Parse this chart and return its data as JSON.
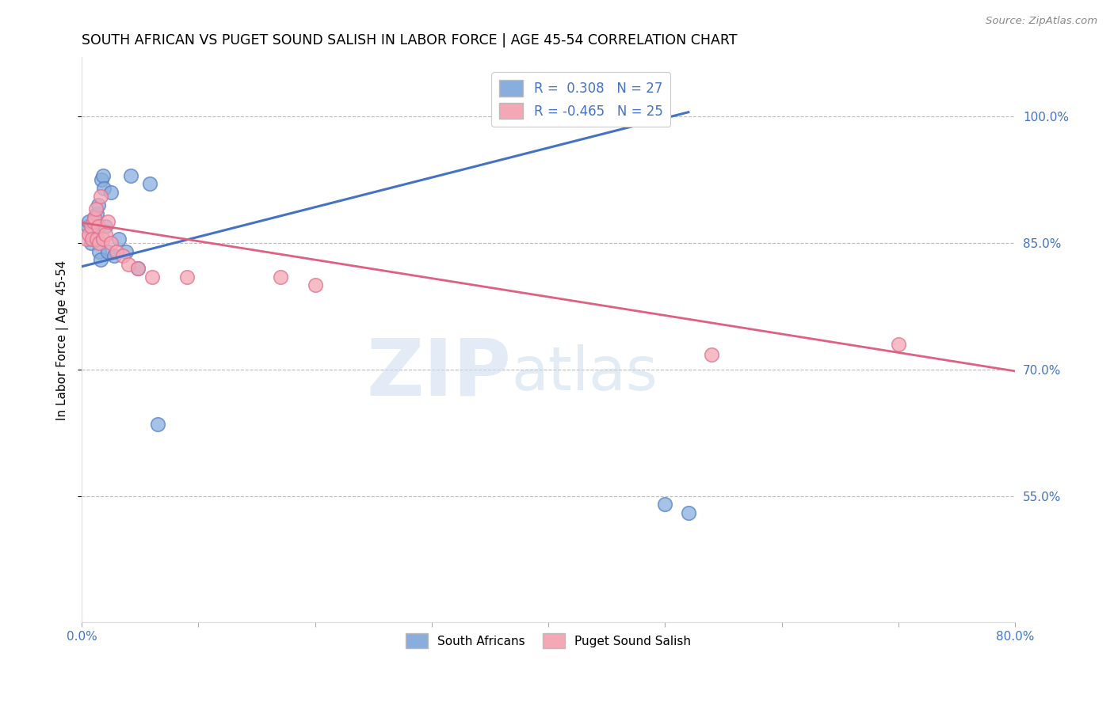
{
  "title": "SOUTH AFRICAN VS PUGET SOUND SALISH IN LABOR FORCE | AGE 45-54 CORRELATION CHART",
  "source": "Source: ZipAtlas.com",
  "ylabel": "In Labor Force | Age 45-54",
  "xlim": [
    0.0,
    0.8
  ],
  "ylim": [
    0.4,
    1.07
  ],
  "x_ticks": [
    0.0,
    0.1,
    0.2,
    0.3,
    0.4,
    0.5,
    0.6,
    0.7,
    0.8
  ],
  "x_tick_labels": [
    "0.0%",
    "",
    "",
    "",
    "",
    "",
    "",
    "",
    "80.0%"
  ],
  "y_ticks": [
    0.55,
    0.7,
    0.85,
    1.0
  ],
  "y_tick_labels_right": [
    "55.0%",
    "70.0%",
    "85.0%",
    "100.0%"
  ],
  "blue_R": "0.308",
  "blue_N": "27",
  "pink_R": "-0.465",
  "pink_N": "25",
  "blue_color": "#89AEDE",
  "pink_color": "#F4A7B5",
  "blue_edge_color": "#5580C0",
  "pink_edge_color": "#E07090",
  "blue_line_color": "#4472C4",
  "pink_line_color": "#E06080",
  "watermark_zip": "ZIP",
  "watermark_atlas": "atlas",
  "legend_blue_label": "South Africans",
  "legend_pink_label": "Puget Sound Salish",
  "blue_scatter_x": [
    0.005,
    0.006,
    0.008,
    0.009,
    0.01,
    0.01,
    0.011,
    0.012,
    0.013,
    0.014,
    0.015,
    0.016,
    0.017,
    0.018,
    0.019,
    0.02,
    0.022,
    0.025,
    0.028,
    0.032,
    0.038,
    0.042,
    0.048,
    0.058,
    0.065,
    0.5,
    0.52
  ],
  "blue_scatter_y": [
    0.87,
    0.875,
    0.85,
    0.865,
    0.86,
    0.855,
    0.88,
    0.875,
    0.885,
    0.895,
    0.84,
    0.83,
    0.925,
    0.93,
    0.915,
    0.87,
    0.84,
    0.91,
    0.835,
    0.855,
    0.84,
    0.93,
    0.82,
    0.92,
    0.635,
    0.54,
    0.53
  ],
  "pink_scatter_x": [
    0.004,
    0.006,
    0.008,
    0.009,
    0.01,
    0.011,
    0.012,
    0.013,
    0.014,
    0.015,
    0.016,
    0.018,
    0.02,
    0.022,
    0.025,
    0.03,
    0.035,
    0.04,
    0.048,
    0.06,
    0.09,
    0.17,
    0.2,
    0.54,
    0.7
  ],
  "pink_scatter_y": [
    0.855,
    0.86,
    0.87,
    0.855,
    0.875,
    0.88,
    0.89,
    0.855,
    0.87,
    0.85,
    0.905,
    0.855,
    0.86,
    0.875,
    0.85,
    0.84,
    0.835,
    0.825,
    0.82,
    0.81,
    0.81,
    0.81,
    0.8,
    0.718,
    0.73
  ],
  "blue_line_x0": 0.0,
  "blue_line_y0": 0.822,
  "blue_line_x1": 0.52,
  "blue_line_y1": 1.005,
  "pink_line_x0": 0.0,
  "pink_line_y0": 0.874,
  "pink_line_x1": 0.8,
  "pink_line_y1": 0.698
}
